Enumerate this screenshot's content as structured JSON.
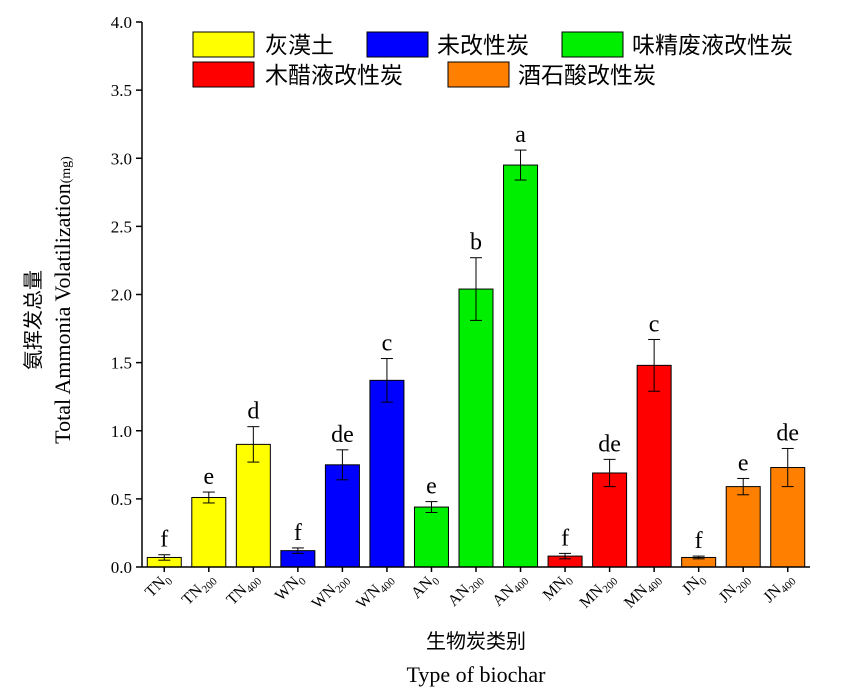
{
  "chart_data": {
    "type": "bar",
    "xlabel_cn": "生物炭类别",
    "xlabel_en": "Type of biochar",
    "ylabel_cn": "氨挥发总量",
    "ylabel_en": "Total Ammonia Volatilization",
    "ylabel_unit": "(mg)",
    "ylim": [
      0,
      4.0
    ],
    "yticks": [
      "0.0",
      "0.5",
      "1.0",
      "1.5",
      "2.0",
      "2.5",
      "3.0",
      "3.5",
      "4.0"
    ],
    "legend_position": "top-right",
    "legend": [
      {
        "label": "灰漠土",
        "color": "#ffff00"
      },
      {
        "label": "未改性炭",
        "color": "#0000ff"
      },
      {
        "label": "味精废液改性炭",
        "color": "#00ee00"
      },
      {
        "label": "木醋液改性炭",
        "color": "#ff0000"
      },
      {
        "label": "酒石酸改性炭",
        "color": "#ff8000"
      }
    ],
    "bars": [
      {
        "base": "TN",
        "sub": "0",
        "value": 0.07,
        "error": 0.02,
        "sig": "f",
        "group": 0
      },
      {
        "base": "TN",
        "sub": "200",
        "value": 0.51,
        "error": 0.04,
        "sig": "e",
        "group": 0
      },
      {
        "base": "TN",
        "sub": "400",
        "value": 0.9,
        "error": 0.13,
        "sig": "d",
        "group": 0
      },
      {
        "base": "WN",
        "sub": "0",
        "value": 0.12,
        "error": 0.02,
        "sig": "f",
        "group": 1
      },
      {
        "base": "WN",
        "sub": "200",
        "value": 0.75,
        "error": 0.11,
        "sig": "de",
        "group": 1
      },
      {
        "base": "WN",
        "sub": "400",
        "value": 1.37,
        "error": 0.16,
        "sig": "c",
        "group": 1
      },
      {
        "base": "AN",
        "sub": "0",
        "value": 0.44,
        "error": 0.04,
        "sig": "e",
        "group": 2
      },
      {
        "base": "AN",
        "sub": "200",
        "value": 2.04,
        "error": 0.23,
        "sig": "b",
        "group": 2
      },
      {
        "base": "AN",
        "sub": "400",
        "value": 2.95,
        "error": 0.11,
        "sig": "a",
        "group": 2
      },
      {
        "base": "MN",
        "sub": "0",
        "value": 0.08,
        "error": 0.02,
        "sig": "f",
        "group": 3
      },
      {
        "base": "MN",
        "sub": "200",
        "value": 0.69,
        "error": 0.1,
        "sig": "de",
        "group": 3
      },
      {
        "base": "MN",
        "sub": "400",
        "value": 1.48,
        "error": 0.19,
        "sig": "c",
        "group": 3
      },
      {
        "base": "JN",
        "sub": "0",
        "value": 0.07,
        "error": 0.01,
        "sig": "f",
        "group": 4
      },
      {
        "base": "JN",
        "sub": "200",
        "value": 0.59,
        "error": 0.06,
        "sig": "e",
        "group": 4
      },
      {
        "base": "JN",
        "sub": "400",
        "value": 0.73,
        "error": 0.14,
        "sig": "de",
        "group": 4
      }
    ]
  }
}
